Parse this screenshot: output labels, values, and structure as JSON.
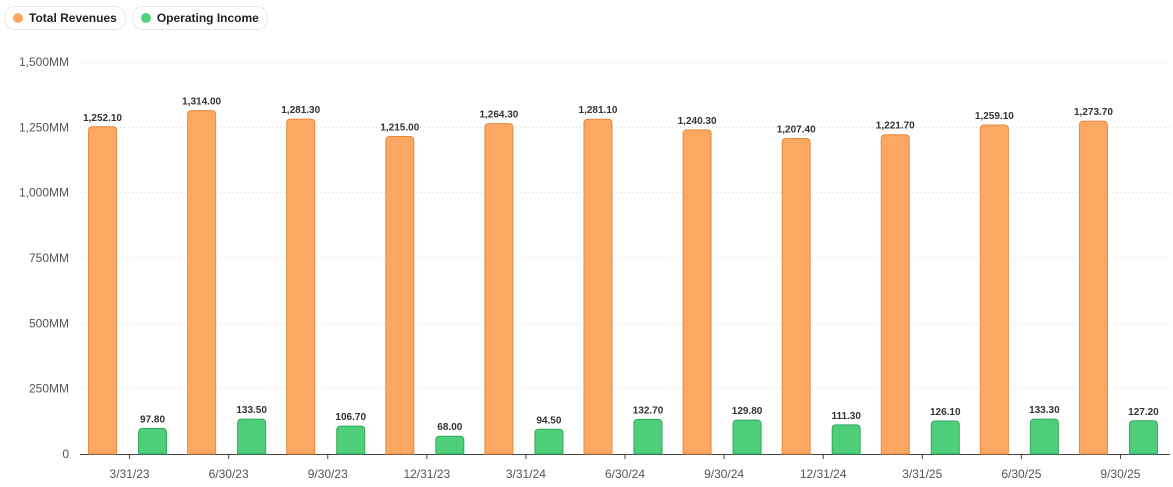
{
  "chart_data": {
    "type": "bar",
    "categories": [
      "3/31/23",
      "6/30/23",
      "9/30/23",
      "12/31/23",
      "3/31/24",
      "6/30/24",
      "9/30/24",
      "12/31/24",
      "3/31/25",
      "6/30/25",
      "9/30/25"
    ],
    "series": [
      {
        "name": "Total Revenues",
        "color": "#fca862",
        "stroke": "#e8893c",
        "values": [
          1252.1,
          1314.0,
          1281.3,
          1215.0,
          1264.3,
          1281.1,
          1240.3,
          1207.4,
          1221.7,
          1259.1,
          1273.7
        ],
        "labels": [
          "1,252.10",
          "1,314.00",
          "1,281.30",
          "1,215.00",
          "1,264.30",
          "1,281.10",
          "1,240.30",
          "1,207.40",
          "1,221.70",
          "1,259.10",
          "1,273.70"
        ]
      },
      {
        "name": "Operating Income",
        "color": "#4fcf7a",
        "stroke": "#2fa85a",
        "values": [
          97.8,
          133.5,
          106.7,
          68.0,
          94.5,
          132.7,
          129.8,
          111.3,
          126.1,
          133.3,
          127.2
        ],
        "labels": [
          "97.80",
          "133.50",
          "106.70",
          "68.00",
          "94.50",
          "132.70",
          "129.80",
          "111.30",
          "126.10",
          "133.30",
          "127.20"
        ]
      }
    ],
    "y_ticks": [
      0,
      250,
      500,
      750,
      1000,
      1250,
      1500
    ],
    "y_tick_labels": [
      "0",
      "250MM",
      "500MM",
      "750MM",
      "1,000MM",
      "1,250MM",
      "1,500MM"
    ],
    "ylim": [
      0,
      1500
    ],
    "grid": true,
    "legend_position": "top-left"
  },
  "legend": [
    {
      "label": "Total Revenues",
      "color": "#fca862"
    },
    {
      "label": "Operating Income",
      "color": "#4fcf7a"
    }
  ]
}
